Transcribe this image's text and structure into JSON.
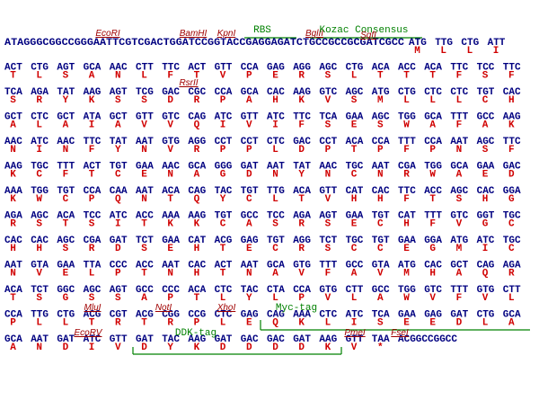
{
  "rows": [
    {
      "labels": [
        {
          "text": "EcoRI",
          "color": "#a00000"
        },
        {
          "text": "BamHI",
          "color": "#a00000"
        },
        {
          "text": "KpnI",
          "color": "#a00000"
        },
        {
          "text": "RBS",
          "color": "#008000"
        },
        {
          "text": "BglII",
          "color": "#a00000"
        },
        {
          "text": "Kozac Consensus",
          "color": "#008000"
        },
        {
          "text": "SgfI",
          "color": "#a00000"
        }
      ],
      "prefix": "ATAGGGCGGCCGGGAATTCGTCGACTGGATCCGGTACCGAGGAGATCTGCCGCCGCGATCGCC",
      "codons": [
        "ATG",
        "TTG",
        "CTG",
        "ATT"
      ],
      "aa": [
        "M",
        "L",
        "L",
        "I"
      ]
    },
    {
      "labels": [],
      "codons": [
        "ACT",
        "CTG",
        "AGT",
        "GCA",
        "AAC",
        "CTT",
        "TTC",
        "ACT",
        "GTT",
        "CCA",
        "GAG",
        "AGG",
        "AGC",
        "CTG",
        "ACA",
        "ACC",
        "ACA",
        "TTC",
        "TCC",
        "TTC"
      ],
      "aa": [
        "T",
        "L",
        "S",
        "A",
        "N",
        "L",
        "F",
        "T",
        "V",
        "P",
        "E",
        "R",
        "S",
        "L",
        "T",
        "T",
        "T",
        "F",
        "S",
        "F"
      ]
    },
    {
      "labels": [
        {
          "text": "RsrII",
          "color": "#a00000"
        }
      ],
      "codons": [
        "TCA",
        "AGA",
        "TAT",
        "AAG",
        "AGT",
        "TCG",
        "GAC",
        "CGC",
        "CCA",
        "GCA",
        "CAC",
        "AAG",
        "GTC",
        "AGC",
        "ATG",
        "CTG",
        "CTC",
        "CTC",
        "TGT",
        "CAC"
      ],
      "aa": [
        "S",
        "R",
        "Y",
        "K",
        "S",
        "S",
        "D",
        "R",
        "P",
        "A",
        "H",
        "K",
        "V",
        "S",
        "M",
        "L",
        "L",
        "L",
        "C",
        "H"
      ]
    },
    {
      "labels": [],
      "codons": [
        "GCT",
        "CTC",
        "GCT",
        "ATA",
        "GCT",
        "GTT",
        "GTC",
        "CAG",
        "ATC",
        "GTT",
        "ATC",
        "TTC",
        "TCA",
        "GAA",
        "AGC",
        "TGG",
        "GCA",
        "TTT",
        "GCC",
        "AAG"
      ],
      "aa": [
        "A",
        "L",
        "A",
        "I",
        "A",
        "V",
        "V",
        "Q",
        "I",
        "V",
        "I",
        "F",
        "S",
        "E",
        "S",
        "W",
        "A",
        "F",
        "A",
        "K"
      ]
    },
    {
      "labels": [],
      "codons": [
        "AAC",
        "ATC",
        "AAC",
        "TTC",
        "TAT",
        "AAT",
        "GTG",
        "AGG",
        "CCT",
        "CCT",
        "CTC",
        "GAC",
        "CCT",
        "ACA",
        "CCA",
        "TTT",
        "CCA",
        "AAT",
        "AGC",
        "TTC"
      ],
      "aa": [
        "N",
        "I",
        "N",
        "F",
        "Y",
        "N",
        "V",
        "R",
        "P",
        "P",
        "L",
        "D",
        "P",
        "T",
        "P",
        "F",
        "P",
        "N",
        "S",
        "F"
      ]
    },
    {
      "labels": [],
      "codons": [
        "AAG",
        "TGC",
        "TTT",
        "ACT",
        "TGT",
        "GAA",
        "AAC",
        "GCA",
        "GGG",
        "GAT",
        "AAT",
        "TAT",
        "AAC",
        "TGC",
        "AAT",
        "CGA",
        "TGG",
        "GCA",
        "GAA",
        "GAC"
      ],
      "aa": [
        "K",
        "C",
        "F",
        "T",
        "C",
        "E",
        "N",
        "A",
        "G",
        "D",
        "N",
        "Y",
        "N",
        "C",
        "N",
        "R",
        "W",
        "A",
        "E",
        "D"
      ]
    },
    {
      "labels": [],
      "codons": [
        "AAA",
        "TGG",
        "TGT",
        "CCA",
        "CAA",
        "AAT",
        "ACA",
        "CAG",
        "TAC",
        "TGT",
        "TTG",
        "ACA",
        "GTT",
        "CAT",
        "CAC",
        "TTC",
        "ACC",
        "AGC",
        "CAC",
        "GGA"
      ],
      "aa": [
        "K",
        "W",
        "C",
        "P",
        "Q",
        "N",
        "T",
        "Q",
        "Y",
        "C",
        "L",
        "T",
        "V",
        "H",
        "H",
        "F",
        "T",
        "S",
        "H",
        "G"
      ]
    },
    {
      "labels": [],
      "codons": [
        "AGA",
        "AGC",
        "ACA",
        "TCC",
        "ATC",
        "ACC",
        "AAA",
        "AAG",
        "TGT",
        "GCC",
        "TCC",
        "AGA",
        "AGT",
        "GAA",
        "TGT",
        "CAT",
        "TTT",
        "GTC",
        "GGT",
        "TGC"
      ],
      "aa": [
        "R",
        "S",
        "T",
        "S",
        "I",
        "T",
        "K",
        "K",
        "C",
        "A",
        "S",
        "R",
        "S",
        "E",
        "C",
        "H",
        "F",
        "V",
        "G",
        "C"
      ]
    },
    {
      "labels": [],
      "codons": [
        "CAC",
        "CAC",
        "AGC",
        "CGA",
        "GAT",
        "TCT",
        "GAA",
        "CAT",
        "ACG",
        "GAG",
        "TGT",
        "AGG",
        "TCT",
        "TGC",
        "TGT",
        "GAA",
        "GGA",
        "ATG",
        "ATC",
        "TGC"
      ],
      "aa": [
        "H",
        "H",
        "S",
        "R",
        "D",
        "S",
        "E",
        "H",
        "T",
        "E",
        "C",
        "R",
        "S",
        "C",
        "C",
        "E",
        "G",
        "M",
        "I",
        "C"
      ]
    },
    {
      "labels": [],
      "codons": [
        "AAT",
        "GTA",
        "GAA",
        "TTA",
        "CCC",
        "ACC",
        "AAT",
        "CAC",
        "ACT",
        "AAT",
        "GCA",
        "GTG",
        "TTT",
        "GCC",
        "GTA",
        "ATG",
        "CAC",
        "GCT",
        "CAG",
        "AGA"
      ],
      "aa": [
        "N",
        "V",
        "E",
        "L",
        "P",
        "T",
        "N",
        "H",
        "T",
        "N",
        "A",
        "V",
        "F",
        "A",
        "V",
        "M",
        "H",
        "A",
        "Q",
        "R"
      ]
    },
    {
      "labels": [],
      "codons": [
        "ACA",
        "TCT",
        "GGC",
        "AGC",
        "AGT",
        "GCC",
        "CCC",
        "ACA",
        "CTC",
        "TAC",
        "CTA",
        "CCA",
        "GTG",
        "CTT",
        "GCC",
        "TGG",
        "GTC",
        "TTT",
        "GTG",
        "CTT"
      ],
      "aa": [
        "T",
        "S",
        "G",
        "S",
        "S",
        "A",
        "P",
        "T",
        "L",
        "Y",
        "L",
        "P",
        "V",
        "L",
        "A",
        "W",
        "V",
        "F",
        "V",
        "L"
      ]
    },
    {
      "labels": [
        {
          "text": "MluI",
          "color": "#a00000"
        },
        {
          "text": "NotI",
          "color": "#a00000"
        },
        {
          "text": "XhoI",
          "color": "#a00000"
        },
        {
          "text": "Myc-tag",
          "color": "#008000"
        }
      ],
      "codons": [
        "CCA",
        "TTG",
        "CTG",
        "ACG",
        "CGT",
        "ACG",
        "CGG",
        "CCG",
        "CTC",
        "GAG",
        "CAG",
        "AAA",
        "CTC",
        "ATC",
        "TCA",
        "GAA",
        "GAG",
        "GAT",
        "CTG",
        "GCA"
      ],
      "aa": [
        "P",
        "L",
        "L",
        "T",
        "R",
        "T",
        "R",
        "P",
        "L",
        "E",
        "Q",
        "K",
        "L",
        "I",
        "S",
        "E",
        "E",
        "D",
        "L",
        "A"
      ]
    },
    {
      "labels": [
        {
          "text": "EcoRV",
          "color": "#a00000"
        },
        {
          "text": "DDK-tag",
          "color": "#008000"
        },
        {
          "text": "PmeI",
          "color": "#a00000"
        },
        {
          "text": "FseI",
          "color": "#a00000"
        }
      ],
      "codons": [
        "GCA",
        "AAT",
        "GAT",
        "ATC",
        "GTT",
        "GAT",
        "TAC",
        "AAG",
        "GAT",
        "GAC",
        "GAC",
        "GAT",
        "AAG",
        "GTT",
        "TAA",
        "ACGGCCGGCC"
      ],
      "aa": [
        "A",
        "N",
        "D",
        "I",
        "V",
        "D",
        "Y",
        "K",
        "D",
        "D",
        "D",
        "D",
        "K",
        "V",
        "*"
      ]
    }
  ]
}
